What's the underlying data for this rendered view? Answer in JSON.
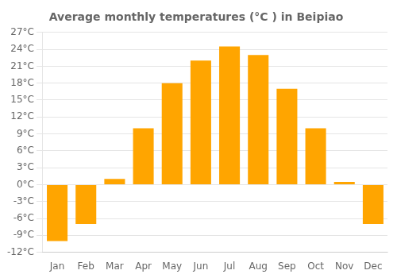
{
  "chart_data": {
    "type": "bar",
    "title": "Average monthly temperatures (°C ) in Beipiao",
    "categories": [
      "Jan",
      "Feb",
      "Mar",
      "Apr",
      "May",
      "Jun",
      "Jul",
      "Aug",
      "Sep",
      "Oct",
      "Nov",
      "Dec"
    ],
    "values": [
      -10,
      -7,
      1,
      10,
      18,
      22,
      24.5,
      23,
      17,
      10,
      0.5,
      -7
    ],
    "color": "#FFA500",
    "ylim": [
      -12,
      27
    ],
    "yticks": [
      {
        "value": -12,
        "label": "-12°C"
      },
      {
        "value": -9,
        "label": "-9°C"
      },
      {
        "value": -6,
        "label": "-6°C"
      },
      {
        "value": -3,
        "label": "-3°C"
      },
      {
        "value": 0,
        "label": "0°C"
      },
      {
        "value": 3,
        "label": "3°C"
      },
      {
        "value": 6,
        "label": "6°C"
      },
      {
        "value": 9,
        "label": "9°C"
      },
      {
        "value": 12,
        "label": "12°C"
      },
      {
        "value": 15,
        "label": "15°C"
      },
      {
        "value": 18,
        "label": "18°C"
      },
      {
        "value": 21,
        "label": "21°C"
      },
      {
        "value": 24,
        "label": "24°C"
      },
      {
        "value": 27,
        "label": "27°C"
      }
    ],
    "grid": "y"
  }
}
